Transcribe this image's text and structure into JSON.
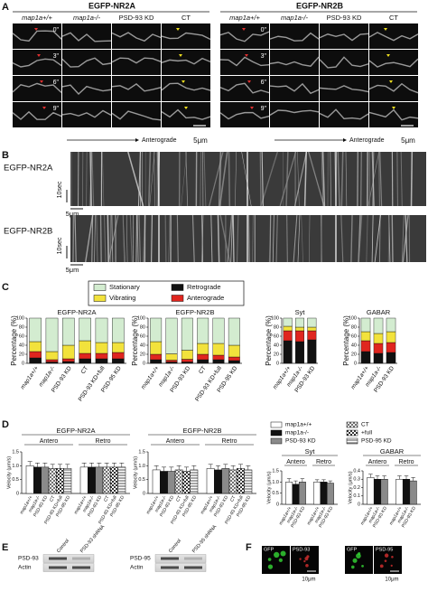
{
  "panel_labels": [
    "A",
    "B",
    "C",
    "D",
    "E",
    "F"
  ],
  "panel_a": {
    "titles": [
      "EGFP-NR2A",
      "EGFP-NR2B"
    ],
    "columns": [
      "map1a+/+",
      "map1a-/-",
      "PSD-93 KD",
      "CT"
    ],
    "times": [
      "0\"",
      "3\"",
      "6\"",
      "9\""
    ],
    "arrow_label": "Anterograde",
    "scale": "5μm"
  },
  "panel_b": {
    "rows": [
      "EGFP-NR2A",
      "EGFP-NR2B"
    ],
    "time_scale": "10sec",
    "scale": "5μm"
  },
  "panel_c": {
    "y_label": "Percentage (%)",
    "ylim": [
      0,
      100
    ],
    "yticks": [
      0,
      20,
      40,
      60,
      80,
      100
    ],
    "series": [
      {
        "name": "Retrograde",
        "color": "#111111"
      },
      {
        "name": "Anterograde",
        "color": "#e0261f"
      },
      {
        "name": "Vibrating",
        "color": "#f2e23c"
      },
      {
        "name": "Stationary",
        "color": "#d3ecd0"
      }
    ],
    "charts": [
      {
        "title": "EGFP-NR2A",
        "categories": [
          "map1a+/+",
          "map1a-/-",
          "PSD-93 KD",
          "CT",
          "PSD-93 KD+full",
          "PSD-95 KD"
        ],
        "values": [
          [
            12,
            3,
            4,
            10,
            10,
            10
          ],
          [
            14,
            5,
            6,
            12,
            12,
            14
          ],
          [
            22,
            18,
            30,
            28,
            24,
            22
          ],
          [
            52,
            74,
            60,
            50,
            54,
            54
          ]
        ]
      },
      {
        "title": "EGFP-NR2B",
        "categories": [
          "map1a+/+",
          "map1a-/-",
          "PSD-93 KD",
          "CT",
          "PSD-93 KD+full",
          "PSD-95 KD"
        ],
        "values": [
          [
            8,
            3,
            3,
            8,
            8,
            6
          ],
          [
            12,
            4,
            6,
            12,
            10,
            8
          ],
          [
            28,
            14,
            20,
            24,
            26,
            26
          ],
          [
            52,
            79,
            71,
            56,
            56,
            60
          ]
        ]
      },
      {
        "title": "Syt",
        "categories": [
          "map1a+/+",
          "map1a-/-",
          "PSD-93 KD"
        ],
        "values": [
          [
            50,
            48,
            52
          ],
          [
            22,
            24,
            20
          ],
          [
            10,
            8,
            8
          ],
          [
            18,
            20,
            20
          ]
        ]
      },
      {
        "title": "GABAR",
        "categories": [
          "map1a+/+",
          "map1a-/-",
          "PSD-93 KD"
        ],
        "values": [
          [
            26,
            22,
            24
          ],
          [
            24,
            22,
            22
          ],
          [
            20,
            22,
            24
          ],
          [
            30,
            34,
            30
          ]
        ]
      }
    ]
  },
  "panel_d": {
    "y_label": "Velocity (μm/s)",
    "legend": [
      {
        "name": "map1a+/+",
        "pattern": "white"
      },
      {
        "name": "map1a-/-",
        "pattern": "black"
      },
      {
        "name": "PSD-93 KD",
        "pattern": "gray"
      },
      {
        "name": "CT",
        "pattern": "cross"
      },
      {
        "name": "+full",
        "pattern": "check"
      },
      {
        "name": "PSD-95 KD",
        "pattern": "hstripe"
      }
    ],
    "charts": [
      {
        "title": "EGFP-NR2A",
        "groups": [
          "Antero",
          "Retro"
        ],
        "categories": [
          "map1a+/+",
          "map1a-/-",
          "PSD-93 KD",
          "CT",
          "PSD-93 KD+full",
          "PSD-95 KD"
        ],
        "ylim": [
          0,
          1.5
        ],
        "yticks": [
          0,
          0.5,
          {
            "value": 1,
            "label": "1.0"
          },
          1.5
        ],
        "values": [
          [
            1.0,
            0.95,
            0.95,
            0.9,
            0.9,
            0.9
          ],
          [
            0.95,
            0.95,
            0.95,
            0.95,
            0.95,
            0.95
          ]
        ],
        "errors": [
          [
            0.15,
            0.15,
            0.15,
            0.15,
            0.15,
            0.15
          ],
          [
            0.15,
            0.15,
            0.15,
            0.15,
            0.15,
            0.15
          ]
        ]
      },
      {
        "title": "EGFP-NR2B",
        "groups": [
          "Antero",
          "Retro"
        ],
        "categories": [
          "map1a+/+",
          "map1a-/-",
          "PSD-93 KD",
          "CT",
          "PSD-93 KD+full",
          "PSD-95 KD"
        ],
        "ylim": [
          0,
          1.5
        ],
        "yticks": [
          0,
          0.5,
          {
            "value": 1,
            "label": "1.0"
          },
          1.5
        ],
        "values": [
          [
            0.85,
            0.8,
            0.8,
            0.85,
            0.8,
            0.85
          ],
          [
            0.9,
            0.85,
            0.9,
            0.85,
            0.9,
            0.85
          ]
        ],
        "errors": [
          [
            0.15,
            0.15,
            0.15,
            0.15,
            0.15,
            0.15
          ],
          [
            0.15,
            0.15,
            0.15,
            0.15,
            0.15,
            0.15
          ]
        ]
      },
      {
        "title": "Syt",
        "groups": [
          "Antero",
          "Retro"
        ],
        "categories": [
          "map1a+/+",
          "map1a-/-",
          "PSD-93 KD"
        ],
        "ylim": [
          0,
          1.5
        ],
        "yticks": [
          0,
          0.5,
          {
            "value": 1,
            "label": "1.0"
          },
          1.5
        ],
        "values": [
          [
            1.0,
            0.9,
            1.0
          ],
          [
            1.0,
            1.0,
            0.95
          ]
        ],
        "errors": [
          [
            0.15,
            0.15,
            0.15
          ],
          [
            0.1,
            0.1,
            0.1
          ]
        ]
      },
      {
        "title": "GABAR",
        "groups": [
          "Antero",
          "Retro"
        ],
        "categories": [
          "map1a+/+",
          "map1a-/-",
          "PSD-93 KD"
        ],
        "ylim": [
          0,
          0.4
        ],
        "yticks": [
          0,
          0.1,
          0.2,
          0.3,
          0.4
        ],
        "values": [
          [
            0.32,
            0.3,
            0.3
          ],
          [
            0.3,
            0.3,
            0.28
          ]
        ],
        "errors": [
          [
            0.04,
            0.04,
            0.04
          ],
          [
            0.04,
            0.04,
            0.04
          ]
        ]
      }
    ]
  },
  "panel_e": {
    "blots": [
      {
        "rows": [
          "PSD-93",
          "Actin"
        ],
        "columns": [
          "Control",
          "PSD-93 shRNA"
        ]
      },
      {
        "rows": [
          "PSD-95",
          "Actin"
        ],
        "columns": [
          "Control",
          "PSD-95 shRNA"
        ]
      }
    ]
  },
  "panel_f": {
    "images": [
      {
        "channels": [
          "GFP",
          "PSD-93"
        ],
        "scale": "10μm"
      },
      {
        "channels": [
          "GFP",
          "PSD-95"
        ],
        "scale": "10μm"
      }
    ]
  }
}
